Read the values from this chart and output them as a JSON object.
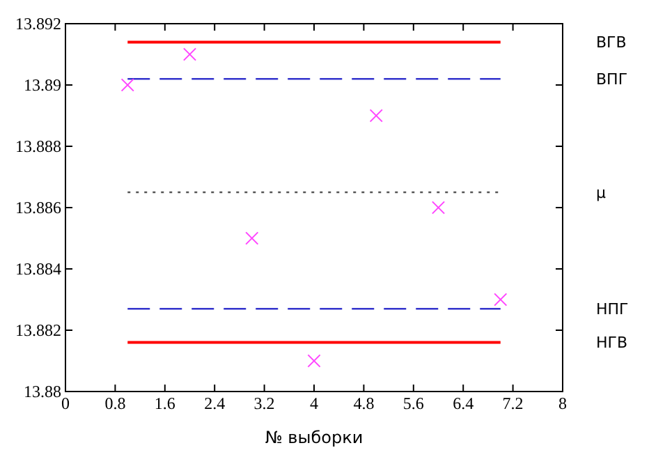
{
  "chart_data": {
    "type": "scatter",
    "xlabel": "№ выборки",
    "xlim": [
      0,
      8
    ],
    "xticks": [
      0,
      0.8,
      1.6,
      2.4,
      3.2,
      4,
      4.8,
      5.6,
      6.4,
      7.2,
      8
    ],
    "ylim": [
      13.88,
      13.892
    ],
    "yticks": [
      13.88,
      13.882,
      13.884,
      13.886,
      13.888,
      13.89,
      13.892
    ],
    "grid": false,
    "legend": false,
    "series": [
      {
        "type": "line",
        "name": "ВГВ",
        "color": "#ff0000",
        "line_style": "solid",
        "marker": "none",
        "x": [
          1,
          7
        ],
        "values": [
          13.8914,
          13.8914
        ]
      },
      {
        "type": "line",
        "name": "ВПГ",
        "color": "#3333cc",
        "line_style": "dashed",
        "marker": "none",
        "x": [
          1,
          7
        ],
        "values": [
          13.8902,
          13.8902
        ]
      },
      {
        "type": "line",
        "name": "μ",
        "color": "#555555",
        "line_style": "dotted",
        "marker": "none",
        "x": [
          1,
          7
        ],
        "values": [
          13.8865,
          13.8865
        ]
      },
      {
        "type": "line",
        "name": "НПГ",
        "color": "#3333cc",
        "line_style": "dashed",
        "marker": "none",
        "x": [
          1,
          7
        ],
        "values": [
          13.8827,
          13.8827
        ]
      },
      {
        "type": "line",
        "name": "НГВ",
        "color": "#ff0000",
        "line_style": "solid",
        "marker": "none",
        "x": [
          1,
          7
        ],
        "values": [
          13.8816,
          13.8816
        ]
      },
      {
        "color": "#ff44ff",
        "marker": "cross",
        "x": [
          1,
          2,
          3,
          4,
          5,
          6,
          7
        ],
        "values": [
          13.89,
          13.891,
          13.885,
          13.881,
          13.889,
          13.886,
          13.883
        ]
      }
    ]
  }
}
